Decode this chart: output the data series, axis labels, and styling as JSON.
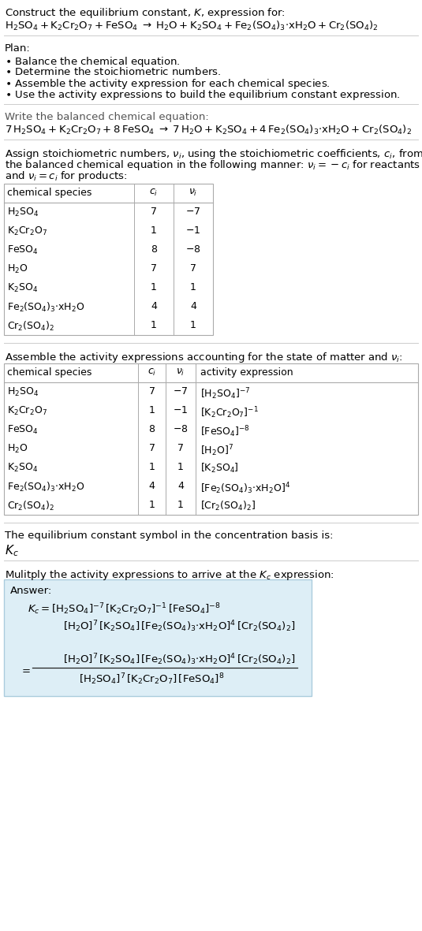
{
  "bg_color": "#ffffff",
  "title_line1": "Construct the equilibrium constant, $K$, expression for:",
  "title_chem": "$\\mathrm{H_2SO_4 + K_2Cr_2O_7 + FeSO_4 \\;\\rightarrow\\; H_2O + K_2SO_4 + Fe_2(SO_4)_3{\\cdot}xH_2O + Cr_2(SO_4)_2}$",
  "plan_header": "Plan:",
  "plan_items": [
    "$\\bullet$ Balance the chemical equation.",
    "$\\bullet$ Determine the stoichiometric numbers.",
    "$\\bullet$ Assemble the activity expression for each chemical species.",
    "$\\bullet$ Use the activity expressions to build the equilibrium constant expression."
  ],
  "balanced_header": "Write the balanced chemical equation:",
  "balanced_eq": "$7\\,\\mathrm{H_2SO_4 + K_2Cr_2O_7 + 8\\,FeSO_4 \\;\\rightarrow\\; 7\\,H_2O + K_2SO_4 + 4\\,Fe_2(SO_4)_3{\\cdot}xH_2O + Cr_2(SO_4)_2}$",
  "stoich_header_parts": [
    "Assign stoichiometric numbers, $\\nu_i$, using the stoichiometric coefficients, $c_i$, from",
    "the balanced chemical equation in the following manner: $\\nu_i = -c_i$ for reactants",
    "and $\\nu_i = c_i$ for products:"
  ],
  "stoich_col_headers": [
    "chemical species",
    "$c_i$",
    "$\\nu_i$"
  ],
  "stoich_rows": [
    [
      "$\\mathrm{H_2SO_4}$",
      "7",
      "$-7$"
    ],
    [
      "$\\mathrm{K_2Cr_2O_7}$",
      "1",
      "$-1$"
    ],
    [
      "$\\mathrm{FeSO_4}$",
      "8",
      "$-8$"
    ],
    [
      "$\\mathrm{H_2O}$",
      "7",
      "7"
    ],
    [
      "$\\mathrm{K_2SO_4}$",
      "1",
      "1"
    ],
    [
      "$\\mathrm{Fe_2(SO_4)_3{\\cdot}xH_2O}$",
      "4",
      "4"
    ],
    [
      "$\\mathrm{Cr_2(SO_4)_2}$",
      "1",
      "1"
    ]
  ],
  "activity_header": "Assemble the activity expressions accounting for the state of matter and $\\nu_i$:",
  "activity_col_headers": [
    "chemical species",
    "$c_i$",
    "$\\nu_i$",
    "activity expression"
  ],
  "activity_rows": [
    [
      "$\\mathrm{H_2SO_4}$",
      "7",
      "$-7$",
      "$[\\mathrm{H_2SO_4}]^{-7}$"
    ],
    [
      "$\\mathrm{K_2Cr_2O_7}$",
      "1",
      "$-1$",
      "$[\\mathrm{K_2Cr_2O_7}]^{-1}$"
    ],
    [
      "$\\mathrm{FeSO_4}$",
      "8",
      "$-8$",
      "$[\\mathrm{FeSO_4}]^{-8}$"
    ],
    [
      "$\\mathrm{H_2O}$",
      "7",
      "7",
      "$[\\mathrm{H_2O}]^7$"
    ],
    [
      "$\\mathrm{K_2SO_4}$",
      "1",
      "1",
      "$[\\mathrm{K_2SO_4}]$"
    ],
    [
      "$\\mathrm{Fe_2(SO_4)_3{\\cdot}xH_2O}$",
      "4",
      "4",
      "$[\\mathrm{Fe_2(SO_4)_3{\\cdot}xH_2O}]^4$"
    ],
    [
      "$\\mathrm{Cr_2(SO_4)_2}$",
      "1",
      "1",
      "$[\\mathrm{Cr_2(SO_4)_2}]$"
    ]
  ],
  "kc_header": "The equilibrium constant symbol in the concentration basis is:",
  "kc_symbol": "$K_c$",
  "multiply_header": "Mulitply the activity expressions to arrive at the $K_c$ expression:",
  "answer_label": "Answer:",
  "kc_eq_line1": "$K_c = [\\mathrm{H_2SO_4}]^{-7}\\,[\\mathrm{K_2Cr_2O_7}]^{-1}\\,[\\mathrm{FeSO_4}]^{-8}$",
  "kc_eq_line2": "$[\\mathrm{H_2O}]^7\\,[\\mathrm{K_2SO_4}]\\,[\\mathrm{Fe_2(SO_4)_3{\\cdot}xH_2O}]^4\\,[\\mathrm{Cr_2(SO_4)_2}]$",
  "kc_num": "$[\\mathrm{H_2O}]^7\\,[\\mathrm{K_2SO_4}]\\,[\\mathrm{Fe_2(SO_4)_3{\\cdot}xH_2O}]^4\\,[\\mathrm{Cr_2(SO_4)_2}]$",
  "kc_den": "$[\\mathrm{H_2SO_4}]^7\\,[\\mathrm{K_2Cr_2O_7}]\\,[\\mathrm{FeSO_4}]^8$",
  "answer_bg": "#ddeef6",
  "answer_border": "#aaccdd",
  "line_color": "#cccccc",
  "table_border": "#aaaaaa"
}
